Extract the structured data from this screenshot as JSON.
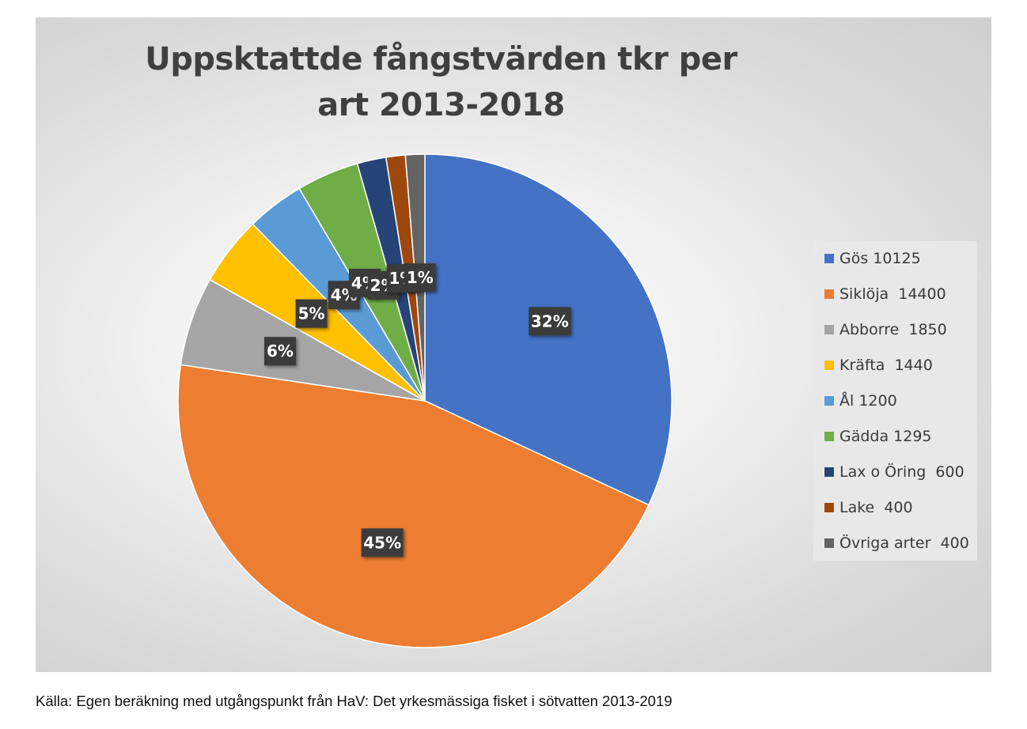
{
  "chart_data": {
    "type": "pie",
    "title": "Uppsktattde fångstvärden tkr per art 2013-2018",
    "categories": [
      "Gös 10125",
      "Siklöja  14400",
      "Abborre  1850",
      "Kräfta  1440",
      "Ål 1200",
      "Gädda 1295",
      "Lax o Öring  600",
      "Lake  400",
      "Övriga arter  400"
    ],
    "values": [
      10125,
      14400,
      1850,
      1440,
      1200,
      1295,
      600,
      400,
      400
    ],
    "data_labels": [
      "32%",
      "45%",
      "6%",
      "5%",
      "4%",
      "4%",
      "2%",
      "1%",
      "1%"
    ],
    "colors": [
      "#4472c4",
      "#ed7d31",
      "#a5a5a5",
      "#ffc000",
      "#5b9bd5",
      "#70ad47",
      "#264478",
      "#9e480e",
      "#636363"
    ],
    "legend_position": "right",
    "start_angle": "12 o'clock",
    "direction": "clockwise"
  },
  "source_note": "Källa: Egen beräkning med utgångspunkt från HaV: Det yrkesmässiga fisket i sötvatten 2013-2019"
}
